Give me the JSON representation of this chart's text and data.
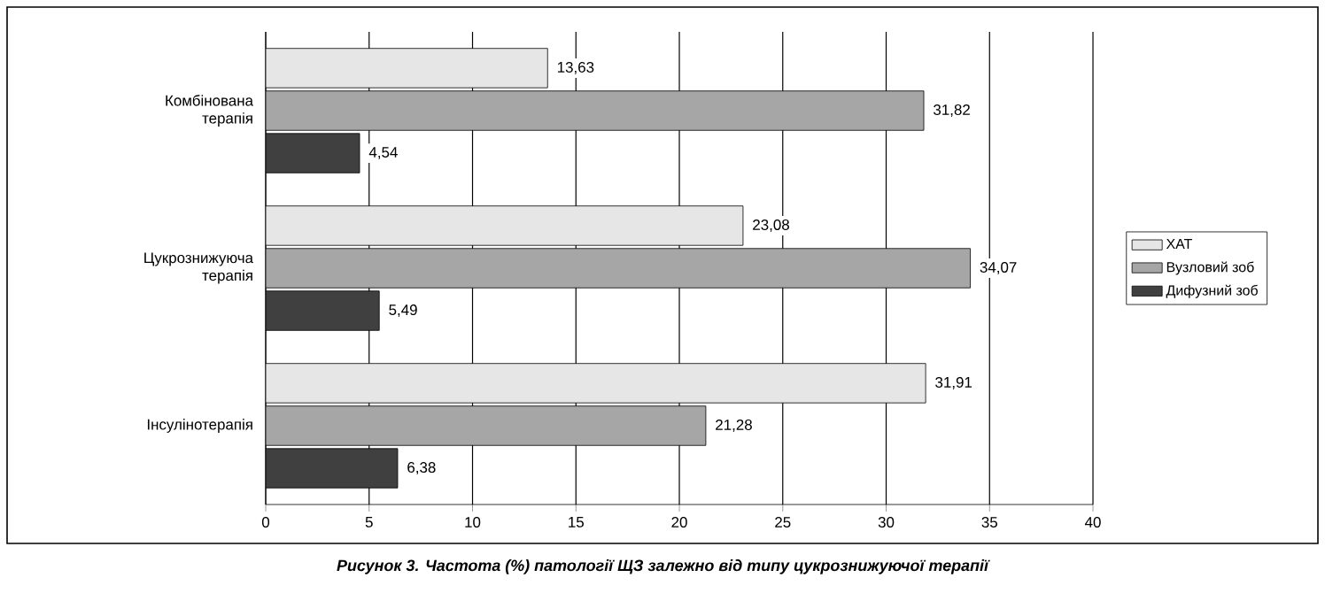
{
  "chart_data": {
    "type": "bar",
    "orientation": "horizontal",
    "title": "Рисунок 3. Частота (%) патології ЩЗ залежно від типу цукрознижуючої терапії",
    "categories": [
      "Комбінована терапія",
      "Цукрознижуюча терапія",
      "Інсулінотерапія"
    ],
    "series": [
      {
        "name": "ХАТ",
        "color": "#e6e6e6",
        "values": [
          13.63,
          23.08,
          31.91
        ],
        "value_labels": [
          "13,63",
          "23,08",
          "31,91"
        ]
      },
      {
        "name": "Вузловий зоб",
        "color": "#a6a6a6",
        "values": [
          31.82,
          34.07,
          21.28
        ],
        "value_labels": [
          "31,82",
          "34,07",
          "21,28"
        ]
      },
      {
        "name": "Дифузний зоб",
        "color": "#404040",
        "values": [
          4.54,
          5.49,
          6.38
        ],
        "value_labels": [
          "4,54",
          "5,49",
          "6,38"
        ]
      }
    ],
    "xlim": [
      0,
      40
    ],
    "xticks": [
      0,
      5,
      10,
      15,
      20,
      25,
      30,
      35,
      40
    ],
    "grid": "x",
    "legend": "right"
  }
}
